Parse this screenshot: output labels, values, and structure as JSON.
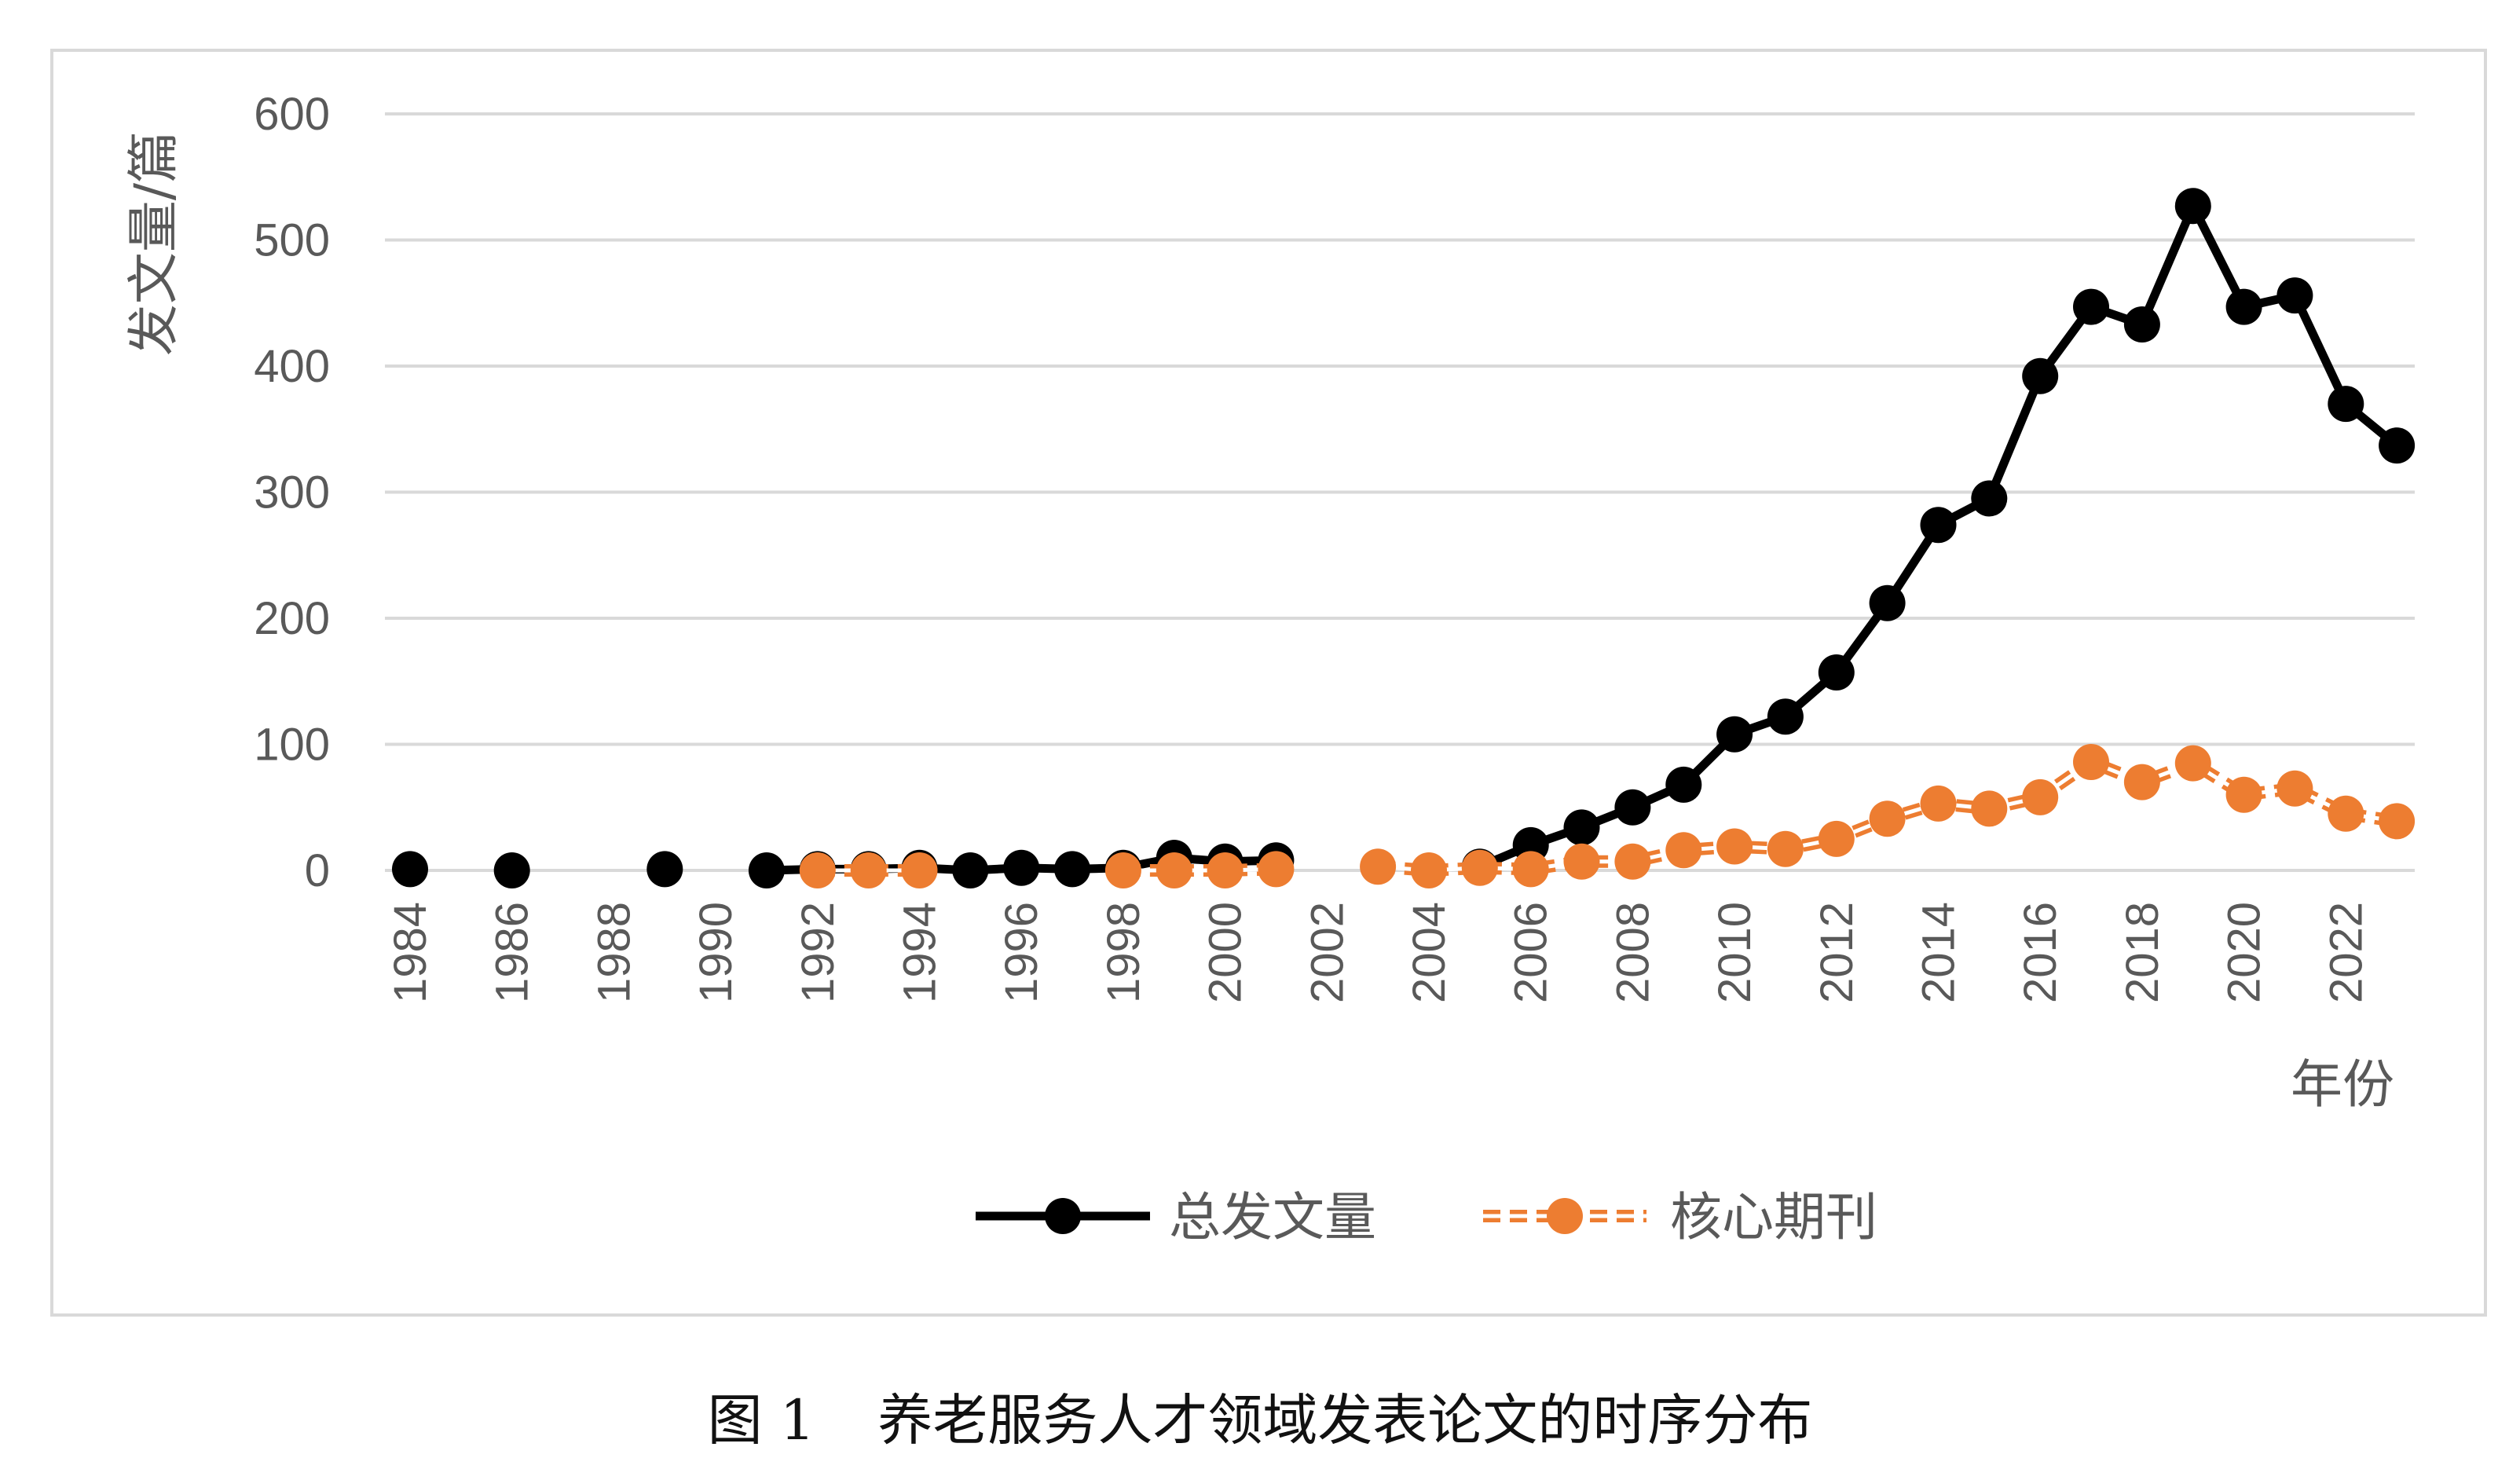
{
  "caption": {
    "figure_number": "图 1",
    "title": "养老服务人才领域发表论文的时序分布"
  },
  "colors": {
    "total": "#000000",
    "core": "#ED7D31",
    "grid": "#d9d9d9",
    "text": "#595959"
  },
  "chart_data": {
    "type": "line",
    "ylabel": "发文量/篇",
    "xlabel": "年份",
    "ylim": [
      0,
      600
    ],
    "yticks": [
      0,
      100,
      200,
      300,
      400,
      500,
      600
    ],
    "xlim": [
      1984,
      2023
    ],
    "xticks": [
      1984,
      1986,
      1988,
      1990,
      1992,
      1994,
      1996,
      1998,
      2000,
      2002,
      2004,
      2006,
      2008,
      2010,
      2012,
      2014,
      2016,
      2018,
      2020,
      2022
    ],
    "grid": true,
    "legend_position": "bottom",
    "series": [
      {
        "name": "总发文量",
        "style": "solid",
        "color": "#000000",
        "x": [
          1984,
          1986,
          1989,
          1991,
          1992,
          1993,
          1994,
          1995,
          1996,
          1997,
          1998,
          1999,
          2000,
          2001,
          2005,
          2006,
          2007,
          2008,
          2009,
          2010,
          2011,
          2012,
          2013,
          2014,
          2015,
          2016,
          2017,
          2018,
          2019,
          2020,
          2021,
          2022,
          2023
        ],
        "y": [
          1,
          0,
          1,
          0,
          1,
          1,
          2,
          0,
          2,
          1,
          2,
          10,
          7,
          8,
          3,
          20,
          34,
          50,
          68,
          108,
          122,
          157,
          212,
          274,
          295,
          392,
          447,
          433,
          527,
          447,
          456,
          370,
          337
        ]
      },
      {
        "name": "核心期刊",
        "style": "dashed",
        "color": "#ED7D31",
        "x": [
          1992,
          1993,
          1994,
          1998,
          1999,
          2000,
          2001,
          2003,
          2004,
          2005,
          2006,
          2007,
          2008,
          2009,
          2010,
          2011,
          2012,
          2013,
          2014,
          2015,
          2016,
          2017,
          2018,
          2019,
          2020,
          2021,
          2022,
          2023
        ],
        "y": [
          0,
          0,
          0,
          0,
          0,
          0,
          1,
          3,
          0,
          2,
          1,
          7,
          7,
          16,
          19,
          17,
          25,
          41,
          53,
          49,
          58,
          86,
          70,
          85,
          60,
          65,
          45,
          39
        ]
      }
    ]
  }
}
